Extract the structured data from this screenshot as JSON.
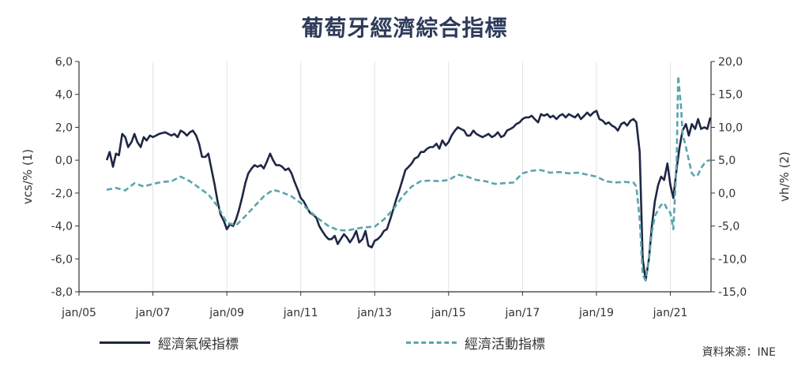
{
  "chart_data": {
    "type": "line",
    "title": "葡萄牙經濟綜合指標",
    "ylabel_left": "vcs/% (1)",
    "ylabel_right": "vh/% (2)",
    "ylim_left": [
      -8,
      6
    ],
    "ylim_right": [
      -15,
      20
    ],
    "yticks_left": [
      "6,0",
      "4,0",
      "2,0",
      "0,0",
      "-2,0",
      "-4,0",
      "-6,0",
      "-8,0"
    ],
    "yticks_right": [
      "20,0",
      "15,0",
      "10,0",
      "5,0",
      "0,0",
      "-5,0",
      "-10,0",
      "-15,0"
    ],
    "xlim": [
      2005.0,
      2022.1
    ],
    "xticks": [
      {
        "x": 2005,
        "label": "jan/05"
      },
      {
        "x": 2007,
        "label": "jan/07"
      },
      {
        "x": 2009,
        "label": "jan/09"
      },
      {
        "x": 2011,
        "label": "jan/11"
      },
      {
        "x": 2013,
        "label": "jan/13"
      },
      {
        "x": 2015,
        "label": "jan/15"
      },
      {
        "x": 2017,
        "label": "jan/17"
      },
      {
        "x": 2019,
        "label": "jan/19"
      },
      {
        "x": 2021,
        "label": "jan/21"
      }
    ],
    "series": [
      {
        "name": "經濟氣候指標",
        "axis": "left",
        "color": "#1f2744",
        "dash": "solid",
        "points": [
          [
            2005.75,
            0.0
          ],
          [
            2005.83,
            0.5
          ],
          [
            2005.92,
            -0.4
          ],
          [
            2006.0,
            0.4
          ],
          [
            2006.08,
            0.3
          ],
          [
            2006.17,
            1.6
          ],
          [
            2006.25,
            1.4
          ],
          [
            2006.33,
            0.8
          ],
          [
            2006.42,
            1.1
          ],
          [
            2006.5,
            1.6
          ],
          [
            2006.58,
            1.1
          ],
          [
            2006.67,
            0.8
          ],
          [
            2006.75,
            1.4
          ],
          [
            2006.83,
            1.2
          ],
          [
            2006.92,
            1.5
          ],
          [
            2007.0,
            1.4
          ],
          [
            2007.17,
            1.6
          ],
          [
            2007.33,
            1.7
          ],
          [
            2007.5,
            1.5
          ],
          [
            2007.58,
            1.6
          ],
          [
            2007.67,
            1.4
          ],
          [
            2007.75,
            1.8
          ],
          [
            2007.83,
            1.7
          ],
          [
            2007.92,
            1.5
          ],
          [
            2008.0,
            1.7
          ],
          [
            2008.08,
            1.8
          ],
          [
            2008.17,
            1.5
          ],
          [
            2008.25,
            1.0
          ],
          [
            2008.33,
            0.2
          ],
          [
            2008.42,
            0.2
          ],
          [
            2008.5,
            0.4
          ],
          [
            2008.58,
            -0.5
          ],
          [
            2008.67,
            -1.5
          ],
          [
            2008.75,
            -2.5
          ],
          [
            2008.83,
            -3.3
          ],
          [
            2008.92,
            -3.7
          ],
          [
            2009.0,
            -4.2
          ],
          [
            2009.08,
            -3.9
          ],
          [
            2009.17,
            -4.0
          ],
          [
            2009.25,
            -3.6
          ],
          [
            2009.33,
            -3.0
          ],
          [
            2009.42,
            -2.2
          ],
          [
            2009.5,
            -1.4
          ],
          [
            2009.58,
            -0.8
          ],
          [
            2009.67,
            -0.5
          ],
          [
            2009.75,
            -0.3
          ],
          [
            2009.83,
            -0.4
          ],
          [
            2009.92,
            -0.3
          ],
          [
            2010.0,
            -0.5
          ],
          [
            2010.08,
            -0.1
          ],
          [
            2010.17,
            0.4
          ],
          [
            2010.25,
            0.0
          ],
          [
            2010.33,
            -0.3
          ],
          [
            2010.42,
            -0.3
          ],
          [
            2010.5,
            -0.4
          ],
          [
            2010.58,
            -0.6
          ],
          [
            2010.67,
            -0.5
          ],
          [
            2010.75,
            -0.8
          ],
          [
            2010.83,
            -1.3
          ],
          [
            2010.92,
            -1.8
          ],
          [
            2011.0,
            -2.3
          ],
          [
            2011.08,
            -2.5
          ],
          [
            2011.17,
            -2.9
          ],
          [
            2011.25,
            -3.2
          ],
          [
            2011.33,
            -3.3
          ],
          [
            2011.42,
            -3.5
          ],
          [
            2011.5,
            -4.0
          ],
          [
            2011.58,
            -4.3
          ],
          [
            2011.67,
            -4.6
          ],
          [
            2011.75,
            -4.8
          ],
          [
            2011.83,
            -4.8
          ],
          [
            2011.92,
            -4.6
          ],
          [
            2012.0,
            -5.1
          ],
          [
            2012.08,
            -4.8
          ],
          [
            2012.17,
            -4.5
          ],
          [
            2012.25,
            -4.7
          ],
          [
            2012.33,
            -5.0
          ],
          [
            2012.42,
            -4.7
          ],
          [
            2012.5,
            -4.3
          ],
          [
            2012.58,
            -5.0
          ],
          [
            2012.67,
            -4.8
          ],
          [
            2012.75,
            -4.3
          ],
          [
            2012.83,
            -5.2
          ],
          [
            2012.92,
            -5.3
          ],
          [
            2013.0,
            -4.9
          ],
          [
            2013.08,
            -4.8
          ],
          [
            2013.17,
            -4.6
          ],
          [
            2013.25,
            -4.3
          ],
          [
            2013.33,
            -4.2
          ],
          [
            2013.42,
            -3.6
          ],
          [
            2013.5,
            -3.0
          ],
          [
            2013.58,
            -2.4
          ],
          [
            2013.67,
            -1.8
          ],
          [
            2013.75,
            -1.2
          ],
          [
            2013.83,
            -0.6
          ],
          [
            2013.92,
            -0.4
          ],
          [
            2014.0,
            -0.2
          ],
          [
            2014.08,
            0.1
          ],
          [
            2014.17,
            0.2
          ],
          [
            2014.25,
            0.5
          ],
          [
            2014.33,
            0.5
          ],
          [
            2014.42,
            0.7
          ],
          [
            2014.5,
            0.8
          ],
          [
            2014.58,
            0.8
          ],
          [
            2014.67,
            1.0
          ],
          [
            2014.75,
            0.7
          ],
          [
            2014.83,
            1.2
          ],
          [
            2014.92,
            0.9
          ],
          [
            2015.0,
            1.1
          ],
          [
            2015.08,
            1.5
          ],
          [
            2015.17,
            1.8
          ],
          [
            2015.25,
            2.0
          ],
          [
            2015.33,
            1.9
          ],
          [
            2015.42,
            1.8
          ],
          [
            2015.5,
            1.5
          ],
          [
            2015.58,
            1.5
          ],
          [
            2015.67,
            1.8
          ],
          [
            2015.75,
            1.6
          ],
          [
            2015.83,
            1.5
          ],
          [
            2015.92,
            1.4
          ],
          [
            2016.0,
            1.5
          ],
          [
            2016.08,
            1.6
          ],
          [
            2016.17,
            1.4
          ],
          [
            2016.25,
            1.5
          ],
          [
            2016.33,
            1.7
          ],
          [
            2016.42,
            1.4
          ],
          [
            2016.5,
            1.5
          ],
          [
            2016.58,
            1.8
          ],
          [
            2016.67,
            1.9
          ],
          [
            2016.75,
            2.0
          ],
          [
            2016.83,
            2.2
          ],
          [
            2016.92,
            2.3
          ],
          [
            2017.0,
            2.5
          ],
          [
            2017.08,
            2.6
          ],
          [
            2017.17,
            2.6
          ],
          [
            2017.25,
            2.7
          ],
          [
            2017.33,
            2.5
          ],
          [
            2017.42,
            2.3
          ],
          [
            2017.5,
            2.8
          ],
          [
            2017.58,
            2.7
          ],
          [
            2017.67,
            2.8
          ],
          [
            2017.75,
            2.6
          ],
          [
            2017.83,
            2.7
          ],
          [
            2017.92,
            2.5
          ],
          [
            2018.0,
            2.7
          ],
          [
            2018.08,
            2.8
          ],
          [
            2018.17,
            2.6
          ],
          [
            2018.25,
            2.8
          ],
          [
            2018.33,
            2.7
          ],
          [
            2018.42,
            2.6
          ],
          [
            2018.5,
            2.8
          ],
          [
            2018.58,
            2.5
          ],
          [
            2018.67,
            2.7
          ],
          [
            2018.75,
            2.9
          ],
          [
            2018.83,
            2.7
          ],
          [
            2018.92,
            2.9
          ],
          [
            2019.0,
            3.0
          ],
          [
            2019.08,
            2.5
          ],
          [
            2019.17,
            2.4
          ],
          [
            2019.25,
            2.2
          ],
          [
            2019.33,
            2.3
          ],
          [
            2019.42,
            2.1
          ],
          [
            2019.5,
            2.0
          ],
          [
            2019.58,
            1.8
          ],
          [
            2019.67,
            2.2
          ],
          [
            2019.75,
            2.3
          ],
          [
            2019.83,
            2.1
          ],
          [
            2019.92,
            2.4
          ],
          [
            2020.0,
            2.5
          ],
          [
            2020.08,
            2.3
          ],
          [
            2020.17,
            0.5
          ],
          [
            2020.25,
            -6.0
          ],
          [
            2020.33,
            -7.3
          ],
          [
            2020.42,
            -6.0
          ],
          [
            2020.5,
            -4.0
          ],
          [
            2020.58,
            -2.5
          ],
          [
            2020.67,
            -1.5
          ],
          [
            2020.75,
            -1.0
          ],
          [
            2020.83,
            -1.2
          ],
          [
            2020.92,
            -0.2
          ],
          [
            2021.0,
            -1.5
          ],
          [
            2021.08,
            -2.3
          ],
          [
            2021.17,
            -0.5
          ],
          [
            2021.25,
            0.8
          ],
          [
            2021.33,
            1.8
          ],
          [
            2021.42,
            2.2
          ],
          [
            2021.5,
            1.5
          ],
          [
            2021.58,
            2.2
          ],
          [
            2021.67,
            1.9
          ],
          [
            2021.75,
            2.5
          ],
          [
            2021.83,
            1.9
          ],
          [
            2021.92,
            2.0
          ],
          [
            2022.0,
            1.9
          ],
          [
            2022.08,
            2.6
          ]
        ]
      },
      {
        "name": "經濟活動指標",
        "axis": "right",
        "color": "#5aa5ac",
        "dash": "dashed",
        "points": [
          [
            2005.75,
            0.5
          ],
          [
            2006.0,
            0.8
          ],
          [
            2006.25,
            0.4
          ],
          [
            2006.5,
            1.5
          ],
          [
            2006.75,
            1.0
          ],
          [
            2007.0,
            1.4
          ],
          [
            2007.25,
            1.7
          ],
          [
            2007.5,
            1.8
          ],
          [
            2007.75,
            2.5
          ],
          [
            2008.0,
            1.8
          ],
          [
            2008.25,
            0.8
          ],
          [
            2008.5,
            -0.2
          ],
          [
            2008.75,
            -2.0
          ],
          [
            2009.0,
            -4.5
          ],
          [
            2009.25,
            -4.9
          ],
          [
            2009.5,
            -3.5
          ],
          [
            2009.75,
            -2.0
          ],
          [
            2010.0,
            -0.5
          ],
          [
            2010.25,
            0.5
          ],
          [
            2010.5,
            0.1
          ],
          [
            2010.75,
            -0.5
          ],
          [
            2011.0,
            -1.5
          ],
          [
            2011.25,
            -2.8
          ],
          [
            2011.5,
            -4.0
          ],
          [
            2011.75,
            -5.0
          ],
          [
            2012.0,
            -5.6
          ],
          [
            2012.25,
            -5.7
          ],
          [
            2012.5,
            -5.4
          ],
          [
            2012.75,
            -5.2
          ],
          [
            2013.0,
            -5.1
          ],
          [
            2013.25,
            -4.0
          ],
          [
            2013.5,
            -2.5
          ],
          [
            2013.75,
            -0.5
          ],
          [
            2014.0,
            1.0
          ],
          [
            2014.25,
            1.8
          ],
          [
            2014.5,
            1.9
          ],
          [
            2014.75,
            1.8
          ],
          [
            2015.0,
            2.0
          ],
          [
            2015.25,
            2.8
          ],
          [
            2015.5,
            2.5
          ],
          [
            2015.75,
            2.0
          ],
          [
            2016.0,
            1.8
          ],
          [
            2016.25,
            1.4
          ],
          [
            2016.5,
            1.5
          ],
          [
            2016.75,
            1.6
          ],
          [
            2017.0,
            3.0
          ],
          [
            2017.25,
            3.4
          ],
          [
            2017.5,
            3.5
          ],
          [
            2017.75,
            3.1
          ],
          [
            2018.0,
            3.2
          ],
          [
            2018.25,
            3.0
          ],
          [
            2018.5,
            3.1
          ],
          [
            2018.75,
            2.8
          ],
          [
            2019.0,
            2.5
          ],
          [
            2019.25,
            1.8
          ],
          [
            2019.5,
            1.6
          ],
          [
            2019.75,
            1.7
          ],
          [
            2020.0,
            1.6
          ],
          [
            2020.08,
            1.0
          ],
          [
            2020.17,
            -4.0
          ],
          [
            2020.25,
            -12.5
          ],
          [
            2020.33,
            -13.2
          ],
          [
            2020.42,
            -10.0
          ],
          [
            2020.5,
            -6.0
          ],
          [
            2020.58,
            -3.5
          ],
          [
            2020.67,
            -2.5
          ],
          [
            2020.75,
            -1.8
          ],
          [
            2020.83,
            -1.5
          ],
          [
            2020.92,
            -2.5
          ],
          [
            2021.0,
            -3.0
          ],
          [
            2021.08,
            -5.5
          ],
          [
            2021.17,
            5.0
          ],
          [
            2021.21,
            17.8
          ],
          [
            2021.29,
            13.0
          ],
          [
            2021.33,
            9.0
          ],
          [
            2021.42,
            7.0
          ],
          [
            2021.5,
            5.0
          ],
          [
            2021.58,
            3.0
          ],
          [
            2021.67,
            2.5
          ],
          [
            2021.75,
            2.8
          ],
          [
            2021.83,
            3.8
          ],
          [
            2021.92,
            4.5
          ],
          [
            2022.0,
            4.9
          ],
          [
            2022.08,
            5.0
          ]
        ]
      }
    ]
  },
  "legend": {
    "item1": "經濟氣候指標",
    "item2": "經濟活動指標"
  },
  "source": "資料來源：INE"
}
